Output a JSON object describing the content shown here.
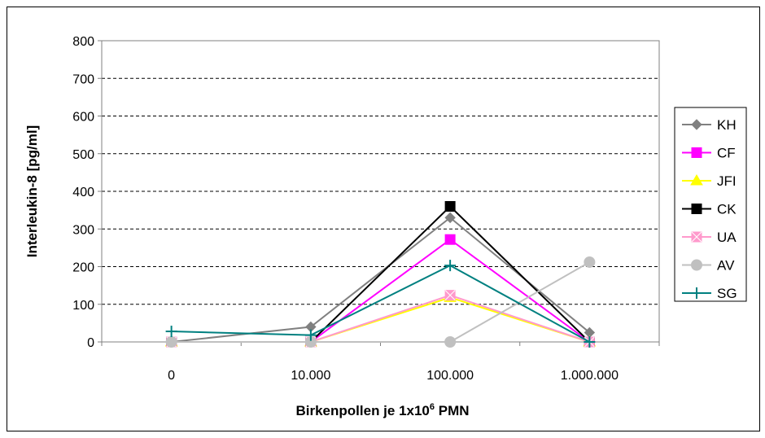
{
  "chart_data": {
    "type": "line",
    "title": "",
    "xlabel": {
      "main": "Birkenpollen je 1x10",
      "sup": "6",
      "tail": " PMN"
    },
    "ylabel": "Interleukin-8 [pg/ml]",
    "categories": [
      "0",
      "10.000",
      "100.000",
      "1.000.000"
    ],
    "yticks": [
      "0",
      "100",
      "200",
      "300",
      "400",
      "500",
      "600",
      "700",
      "800"
    ],
    "ylim": [
      0,
      800
    ],
    "grid": "horizontal dashed",
    "legend_position": "right",
    "series": [
      {
        "name": "KH",
        "color": "#808080",
        "marker": "diamond",
        "values": [
          0,
          40,
          330,
          25
        ]
      },
      {
        "name": "CF",
        "color": "#FF00FF",
        "marker": "square",
        "values": [
          0,
          0,
          272,
          0
        ]
      },
      {
        "name": "JFI",
        "color": "#FFFF00",
        "marker": "triangle",
        "values": [
          0,
          0,
          118,
          0
        ]
      },
      {
        "name": "CK",
        "color": "#000000",
        "marker": "square",
        "values": [
          0,
          0,
          360,
          0
        ]
      },
      {
        "name": "UA",
        "color": "#FF99CC",
        "marker": "asterisk",
        "values": [
          0,
          0,
          124,
          0
        ]
      },
      {
        "name": "AV",
        "color": "#C0C0C0",
        "marker": "circle",
        "values": [
          0,
          0,
          0,
          212
        ]
      },
      {
        "name": "SG",
        "color": "#008080",
        "marker": "plus",
        "values": [
          28,
          18,
          203,
          0
        ]
      }
    ]
  }
}
